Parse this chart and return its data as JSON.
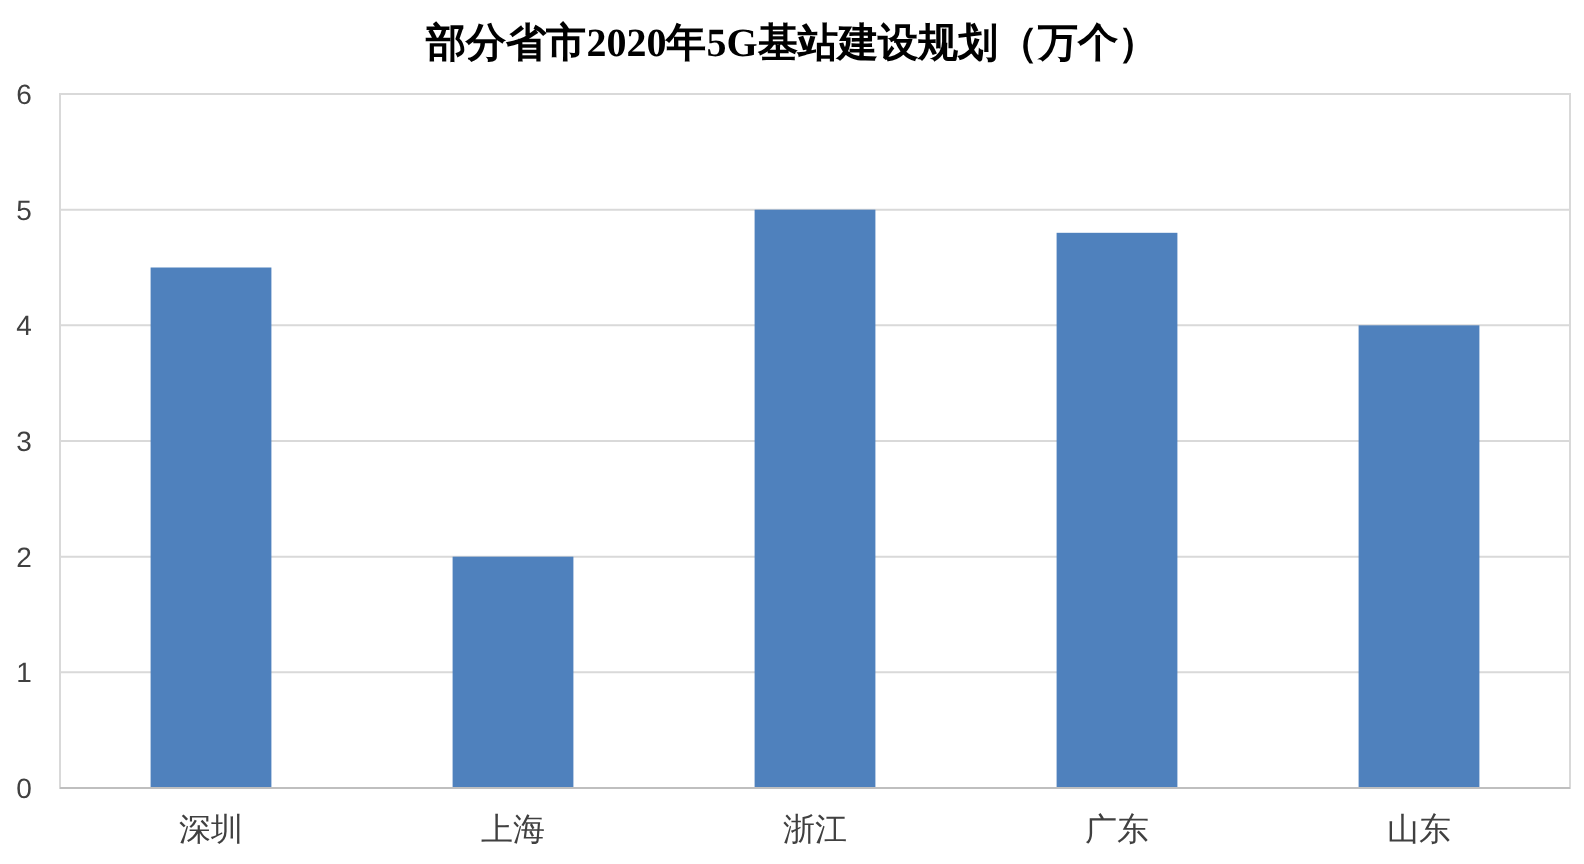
{
  "chart_data": {
    "type": "bar",
    "title": "部分省市2020年5G基站建设规划（万个）",
    "categories": [
      "深圳",
      "上海",
      "浙江",
      "广东",
      "山东"
    ],
    "values": [
      4.5,
      2,
      5,
      4.8,
      4
    ],
    "color": "#4f81bd",
    "ylim": [
      0,
      6
    ],
    "yticks": [
      0,
      1,
      2,
      3,
      4,
      5,
      6
    ],
    "grid": "y"
  }
}
